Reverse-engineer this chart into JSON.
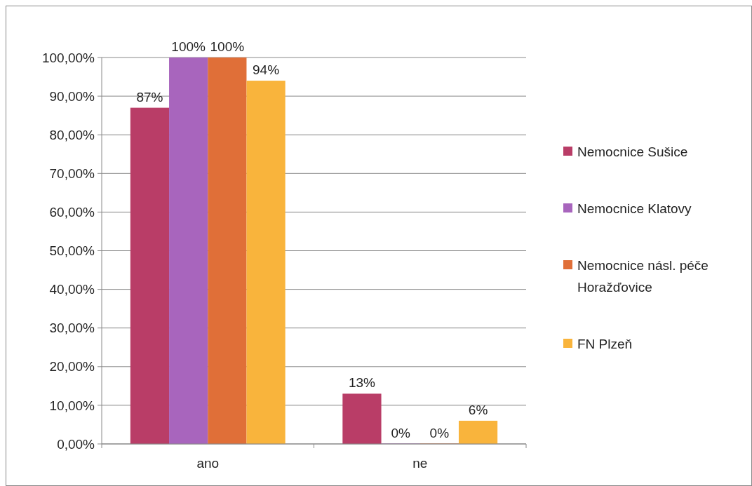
{
  "chart_data": {
    "type": "bar",
    "categories": [
      "ano",
      "ne"
    ],
    "series": [
      {
        "name": "Nemocnice Sušice",
        "color": "#b93d67",
        "values": [
          87,
          13
        ],
        "value_labels": [
          "87%",
          "13%"
        ]
      },
      {
        "name": "Nemocnice Klatovy",
        "color": "#a865bd",
        "values": [
          100,
          0
        ],
        "value_labels": [
          "100%",
          "0%"
        ]
      },
      {
        "name": "Nemocnice násl. péče Horažďovice",
        "color": "#e06f38",
        "values": [
          100,
          0
        ],
        "value_labels": [
          "100%",
          "0%"
        ]
      },
      {
        "name": "FN Plzeň",
        "color": "#f9b43c",
        "values": [
          94,
          6
        ],
        "value_labels": [
          "94%",
          "6%"
        ]
      }
    ],
    "ylim": [
      0,
      100
    ],
    "yticks": [
      {
        "value": 0,
        "label": "0,00%"
      },
      {
        "value": 10,
        "label": "10,00%"
      },
      {
        "value": 20,
        "label": "20,00%"
      },
      {
        "value": 30,
        "label": "30,00%"
      },
      {
        "value": 40,
        "label": "40,00%"
      },
      {
        "value": 50,
        "label": "50,00%"
      },
      {
        "value": 60,
        "label": "60,00%"
      },
      {
        "value": 70,
        "label": "70,00%"
      },
      {
        "value": 80,
        "label": "80,00%"
      },
      {
        "value": 90,
        "label": "90,00%"
      },
      {
        "value": 100,
        "label": "100,00%"
      }
    ],
    "grid": "y",
    "legend": "right"
  }
}
